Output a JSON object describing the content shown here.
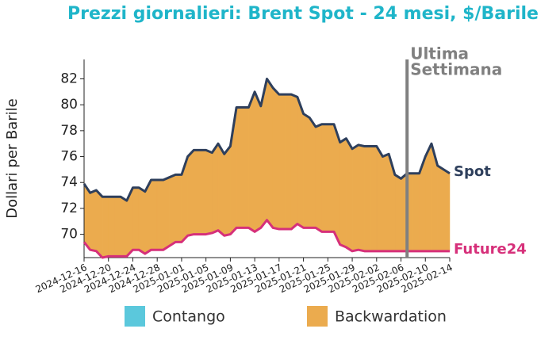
{
  "chart_data": {
    "type": "line",
    "title": "Prezzi giornalieri: Brent Spot - 24 mesi, $/Barile",
    "y_label": "Dollari per Barile",
    "x": [
      "2024-12-16",
      "2024-12-17",
      "2024-12-18",
      "2024-12-19",
      "2024-12-20",
      "2024-12-21",
      "2024-12-22",
      "2024-12-23",
      "2024-12-24",
      "2024-12-25",
      "2024-12-26",
      "2024-12-27",
      "2024-12-28",
      "2024-12-29",
      "2024-12-30",
      "2024-12-31",
      "2025-01-01",
      "2025-01-02",
      "2025-01-03",
      "2025-01-04",
      "2025-01-05",
      "2025-01-06",
      "2025-01-07",
      "2025-01-08",
      "2025-01-09",
      "2025-01-10",
      "2025-01-11",
      "2025-01-12",
      "2025-01-13",
      "2025-01-14",
      "2025-01-15",
      "2025-01-16",
      "2025-01-17",
      "2025-01-18",
      "2025-01-19",
      "2025-01-20",
      "2025-01-21",
      "2025-01-22",
      "2025-01-23",
      "2025-01-24",
      "2025-01-25",
      "2025-01-26",
      "2025-01-27",
      "2025-01-28",
      "2025-01-29",
      "2025-01-30",
      "2025-01-31",
      "2025-02-01",
      "2025-02-02",
      "2025-02-03",
      "2025-02-04",
      "2025-02-05",
      "2025-02-06",
      "2025-02-07",
      "2025-02-08",
      "2025-02-09",
      "2025-02-10",
      "2025-02-11",
      "2025-02-12",
      "2025-02-13",
      "2025-02-14"
    ],
    "series": [
      {
        "name": "Spot",
        "color": "#2e3f5c",
        "values": [
          73.9,
          73.2,
          73.4,
          72.9,
          72.9,
          72.9,
          72.9,
          72.6,
          73.6,
          73.6,
          73.3,
          74.2,
          74.2,
          74.2,
          74.4,
          74.6,
          74.6,
          76.0,
          76.5,
          76.5,
          76.5,
          76.3,
          77.0,
          76.2,
          76.8,
          79.8,
          79.8,
          79.8,
          81.0,
          79.9,
          82.0,
          81.3,
          80.8,
          80.8,
          80.8,
          80.6,
          79.3,
          79.0,
          78.3,
          78.5,
          78.5,
          78.5,
          77.1,
          77.4,
          76.6,
          76.9,
          76.8,
          76.8,
          76.8,
          76.0,
          76.2,
          74.6,
          74.3,
          74.7,
          74.7,
          74.7,
          76.0,
          77.0,
          75.3,
          75.0,
          74.7
        ]
      },
      {
        "name": "Future24",
        "color": "#d6307a",
        "values": [
          69.4,
          68.8,
          68.7,
          68.2,
          68.3,
          68.3,
          68.3,
          68.3,
          68.8,
          68.8,
          68.5,
          68.8,
          68.8,
          68.8,
          69.1,
          69.4,
          69.4,
          69.9,
          70.0,
          70.0,
          70.0,
          70.1,
          70.3,
          69.9,
          70.0,
          70.5,
          70.5,
          70.5,
          70.2,
          70.5,
          71.1,
          70.5,
          70.4,
          70.4,
          70.4,
          70.8,
          70.5,
          70.5,
          70.5,
          70.2,
          70.2,
          70.2,
          69.2,
          69.0,
          68.7,
          68.8,
          68.7,
          68.7,
          68.7,
          68.7,
          68.7,
          68.7,
          68.7,
          68.7,
          68.7,
          68.7,
          68.7,
          68.7,
          68.7,
          68.7,
          68.7
        ]
      }
    ],
    "fills": [
      {
        "name": "Contango",
        "color": "#5bc8dc"
      },
      {
        "name": "Backwardation",
        "color": "#ebab4e"
      }
    ],
    "annotation": {
      "x": "2025-02-07",
      "lines": [
        "Ultima",
        "Settimana"
      ],
      "color": "#808080"
    },
    "xlim": [
      "2024-12-16",
      "2025-02-14"
    ],
    "xticks": [
      "2024-12-16",
      "2024-12-20",
      "2024-12-24",
      "2024-12-28",
      "2025-01-01",
      "2025-01-05",
      "2025-01-09",
      "2025-01-13",
      "2025-01-17",
      "2025-01-21",
      "2025-01-25",
      "2025-01-29",
      "2025-02-02",
      "2025-02-06",
      "2025-02-10",
      "2025-02-14"
    ],
    "ylim": [
      68.2,
      83.5
    ],
    "yticks": [
      70,
      72,
      74,
      76,
      78,
      80,
      82
    ]
  }
}
